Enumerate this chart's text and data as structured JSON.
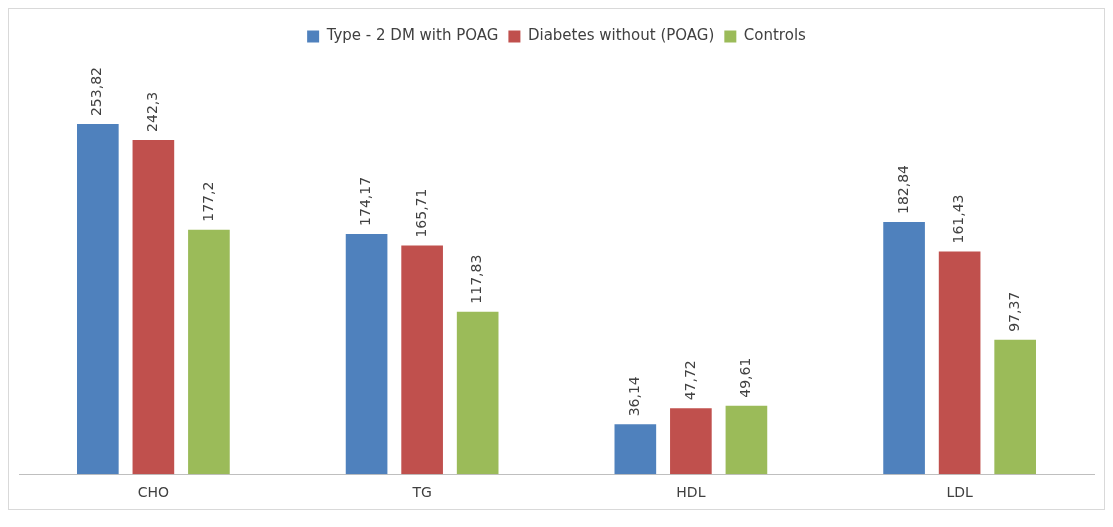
{
  "chart_data": {
    "type": "bar",
    "categories": [
      "CHO",
      "TG",
      "HDL",
      "LDL"
    ],
    "legend": "top",
    "series": [
      {
        "name": "Type - 2 DM with POAG",
        "color": "#4f81bd",
        "values": [
          253.82,
          174.17,
          36.14,
          182.84
        ],
        "value_labels": [
          "253,82",
          "174,17",
          "36,14",
          "182,84"
        ]
      },
      {
        "name": "Diabetes without (POAG)",
        "color": "#c0504d",
        "values": [
          242.3,
          165.71,
          47.72,
          161.43
        ],
        "value_labels": [
          "242,3",
          "165,71",
          "47,72",
          "161,43"
        ]
      },
      {
        "name": "Controls",
        "color": "#9bbb59",
        "values": [
          177.2,
          117.83,
          49.61,
          97.37
        ],
        "value_labels": [
          "177,2",
          "117,83",
          "49,61",
          "97,37"
        ]
      }
    ]
  }
}
